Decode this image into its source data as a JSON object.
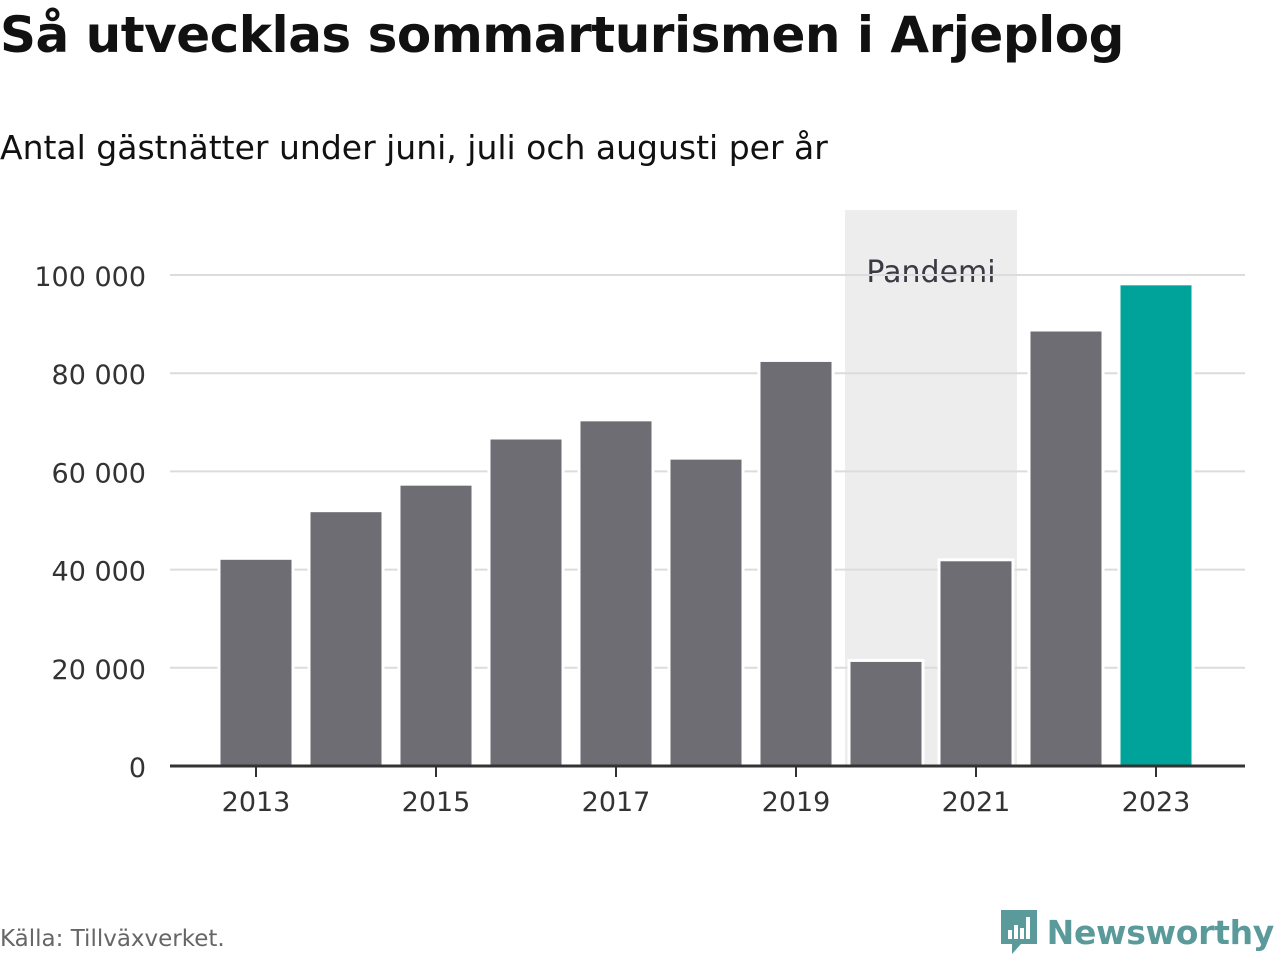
{
  "title": "Så utvecklas sommarturismen i Arjeplog",
  "subtitle": "Antal gästnätter under juni, juli och augusti per år",
  "source": "Källa: Tillväxverket.",
  "logo": {
    "text": "Newsworthy",
    "icon": "bar-chart-bubble-icon",
    "color": "#5b9a9a"
  },
  "colors": {
    "bar": "#6e6d74",
    "highlight": "#00a39a",
    "shade": "#ededed",
    "grid": "#dcdcdc",
    "axis": "#333333"
  },
  "chart_data": {
    "type": "bar",
    "title": "Så utvecklas sommarturismen i Arjeplog",
    "subtitle": "Antal gästnätter under juni, juli och augusti per år",
    "xlabel": "",
    "ylabel": "",
    "categories": [
      "2013",
      "2014",
      "2015",
      "2016",
      "2017",
      "2018",
      "2019",
      "2020",
      "2021",
      "2022",
      "2023"
    ],
    "values": [
      42300,
      52000,
      57400,
      66800,
      70500,
      62700,
      82600,
      21500,
      42000,
      88800,
      98200
    ],
    "highlight_index": 10,
    "ylim": [
      0,
      100000
    ],
    "yticks": [
      0,
      20000,
      40000,
      60000,
      80000,
      100000
    ],
    "ytick_labels": [
      "0",
      "20 000",
      "40 000",
      "60 000",
      "80 000",
      "100 000"
    ],
    "xtick_labels": [
      "2013",
      "2015",
      "2017",
      "2019",
      "2021",
      "2023"
    ],
    "grid": true,
    "legend": "none",
    "annotations": [
      {
        "type": "shaded_range",
        "from": "2020",
        "to": "2021",
        "label": "Pandemi"
      }
    ]
  }
}
